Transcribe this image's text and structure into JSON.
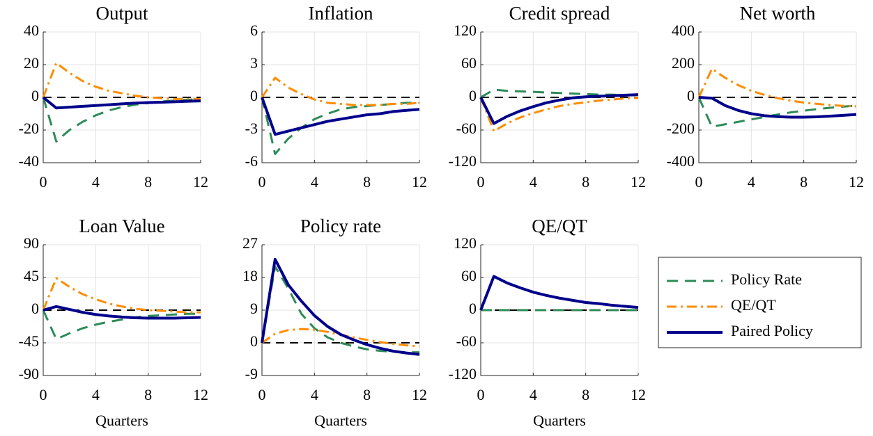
{
  "series_styles": [
    {
      "name": "Policy Rate",
      "color": "#2e8b57",
      "dash": "dashed"
    },
    {
      "name": "QE/QT",
      "color": "#ff8c00",
      "dash": "dashdot"
    },
    {
      "name": "Paired Policy",
      "color": "#00008b",
      "dash": "solid"
    }
  ],
  "legend": "right",
  "chart_data": [
    {
      "type": "line",
      "title": "Output",
      "x": [
        0,
        1,
        2,
        3,
        4,
        5,
        6,
        7,
        8,
        9,
        10,
        11,
        12
      ],
      "xlim": [
        0,
        12
      ],
      "xticks": [
        0,
        4,
        8,
        12
      ],
      "ylim": [
        -40,
        40
      ],
      "yticks": [
        -40,
        -20,
        0,
        20,
        40
      ],
      "grid": true,
      "hline": 0,
      "series": [
        {
          "values": [
            0,
            -27,
            -20,
            -15,
            -11,
            -8,
            -6,
            -4.5,
            -3.5,
            -2.5,
            -2,
            -1.5,
            -1
          ]
        },
        {
          "values": [
            0,
            21,
            15,
            10,
            6.5,
            4,
            2.5,
            1,
            0,
            -0.5,
            -1,
            -1,
            -1
          ]
        },
        {
          "values": [
            0,
            -6.5,
            -6,
            -5.5,
            -5,
            -4.5,
            -4,
            -3.5,
            -3.2,
            -3,
            -2.7,
            -2.4,
            -2.2
          ]
        }
      ]
    },
    {
      "type": "line",
      "title": "Inflation",
      "x": [
        0,
        1,
        2,
        3,
        4,
        5,
        6,
        7,
        8,
        9,
        10,
        11,
        12
      ],
      "xlim": [
        0,
        12
      ],
      "xticks": [
        0,
        4,
        8,
        12
      ],
      "ylim": [
        -6,
        6
      ],
      "yticks": [
        -6,
        -3,
        0,
        3,
        6
      ],
      "grid": true,
      "hline": 0,
      "series": [
        {
          "values": [
            0,
            -5.2,
            -3.8,
            -2.8,
            -2,
            -1.5,
            -1.1,
            -0.9,
            -0.8,
            -0.7,
            -0.6,
            -0.5,
            -0.5
          ]
        },
        {
          "values": [
            0,
            1.8,
            0.9,
            0.3,
            -0.2,
            -0.5,
            -0.6,
            -0.7,
            -0.7,
            -0.7,
            -0.6,
            -0.6,
            -0.5
          ]
        },
        {
          "values": [
            0,
            -3.4,
            -3.1,
            -2.8,
            -2.5,
            -2.2,
            -2,
            -1.8,
            -1.6,
            -1.5,
            -1.3,
            -1.2,
            -1.1
          ]
        }
      ]
    },
    {
      "type": "line",
      "title": "Credit spread",
      "x": [
        0,
        1,
        2,
        3,
        4,
        5,
        6,
        7,
        8,
        9,
        10,
        11,
        12
      ],
      "xlim": [
        0,
        12
      ],
      "xticks": [
        0,
        4,
        8,
        12
      ],
      "ylim": [
        -120,
        120
      ],
      "yticks": [
        -120,
        -60,
        0,
        60,
        120
      ],
      "grid": true,
      "hline": 0,
      "series": [
        {
          "values": [
            0,
            14,
            12,
            11,
            10,
            9,
            8,
            7,
            6,
            5,
            5,
            4,
            4
          ]
        },
        {
          "values": [
            0,
            -62,
            -48,
            -37,
            -29,
            -22,
            -16,
            -12,
            -9,
            -6,
            -4,
            -2,
            -1
          ]
        },
        {
          "values": [
            0,
            -48,
            -35,
            -25,
            -17,
            -10,
            -5,
            -1,
            1,
            2,
            3,
            4,
            5
          ]
        }
      ]
    },
    {
      "type": "line",
      "title": "Net worth",
      "x": [
        0,
        1,
        2,
        3,
        4,
        5,
        6,
        7,
        8,
        9,
        10,
        11,
        12
      ],
      "xlim": [
        0,
        12
      ],
      "xticks": [
        0,
        4,
        8,
        12
      ],
      "ylim": [
        -400,
        400
      ],
      "yticks": [
        -400,
        -200,
        0,
        200,
        400
      ],
      "grid": true,
      "hline": 0,
      "series": [
        {
          "values": [
            0,
            -180,
            -165,
            -150,
            -135,
            -120,
            -105,
            -92,
            -82,
            -72,
            -64,
            -57,
            -50
          ]
        },
        {
          "values": [
            0,
            175,
            120,
            75,
            40,
            15,
            -5,
            -20,
            -32,
            -40,
            -47,
            -52,
            -55
          ]
        },
        {
          "values": [
            0,
            -5,
            -50,
            -80,
            -100,
            -112,
            -118,
            -121,
            -121,
            -119,
            -115,
            -110,
            -105
          ]
        }
      ]
    },
    {
      "type": "line",
      "title": "Loan Value",
      "xlabel": "Quarters",
      "x": [
        0,
        1,
        2,
        3,
        4,
        5,
        6,
        7,
        8,
        9,
        10,
        11,
        12
      ],
      "xlim": [
        0,
        12
      ],
      "xticks": [
        0,
        4,
        8,
        12
      ],
      "ylim": [
        -90,
        90
      ],
      "yticks": [
        -90,
        -45,
        0,
        45,
        90
      ],
      "grid": true,
      "hline": 0,
      "series": [
        {
          "values": [
            0,
            -40,
            -32,
            -25,
            -20,
            -16,
            -13,
            -10,
            -8,
            -7,
            -6,
            -5,
            -5
          ]
        },
        {
          "values": [
            0,
            44,
            32,
            22,
            15,
            9,
            5,
            2,
            0,
            -1,
            -2,
            -3,
            -3
          ]
        },
        {
          "values": [
            0,
            5,
            1,
            -3,
            -6,
            -8,
            -9.5,
            -10.5,
            -11,
            -11,
            -11,
            -10.5,
            -10
          ]
        }
      ]
    },
    {
      "type": "line",
      "title": "Policy rate",
      "xlabel": "Quarters",
      "x": [
        0,
        1,
        2,
        3,
        4,
        5,
        6,
        7,
        8,
        9,
        10,
        11,
        12
      ],
      "xlim": [
        0,
        12
      ],
      "xticks": [
        0,
        4,
        8,
        12
      ],
      "ylim": [
        -9,
        27
      ],
      "yticks": [
        -9,
        0,
        9,
        18,
        27
      ],
      "grid": true,
      "hline": 0,
      "series": [
        {
          "values": [
            0,
            21,
            15,
            8,
            4,
            1.5,
            0,
            -1,
            -1.8,
            -2.2,
            -2.5,
            -2.6,
            -2.6
          ]
        },
        {
          "values": [
            0,
            2.5,
            3.5,
            3.8,
            3.6,
            3,
            2.2,
            1.5,
            0.8,
            0.2,
            -0.3,
            -0.7,
            -1
          ]
        },
        {
          "values": [
            0,
            23,
            16,
            11.5,
            7.5,
            4.5,
            2.3,
            0.8,
            -0.5,
            -1.5,
            -2.3,
            -2.8,
            -3.2
          ]
        }
      ]
    },
    {
      "type": "line",
      "title": "QE/QT",
      "xlabel": "Quarters",
      "x": [
        0,
        1,
        2,
        3,
        4,
        5,
        6,
        7,
        8,
        9,
        10,
        11,
        12
      ],
      "xlim": [
        0,
        12
      ],
      "xticks": [
        0,
        4,
        8,
        12
      ],
      "ylim": [
        -120,
        120
      ],
      "yticks": [
        -120,
        -60,
        0,
        60,
        120
      ],
      "grid": true,
      "hline": 0,
      "series": [
        {
          "values": [
            0,
            0,
            0,
            0,
            0,
            0,
            0,
            0,
            0,
            0,
            0,
            0,
            0
          ]
        },
        {
          "values": [
            0,
            62,
            50,
            41,
            33,
            27,
            22,
            18,
            14,
            12,
            9,
            7,
            5
          ]
        },
        {
          "values": [
            0,
            62,
            50,
            41,
            33,
            27,
            22,
            18,
            14,
            12,
            9,
            7,
            5
          ]
        }
      ]
    }
  ]
}
